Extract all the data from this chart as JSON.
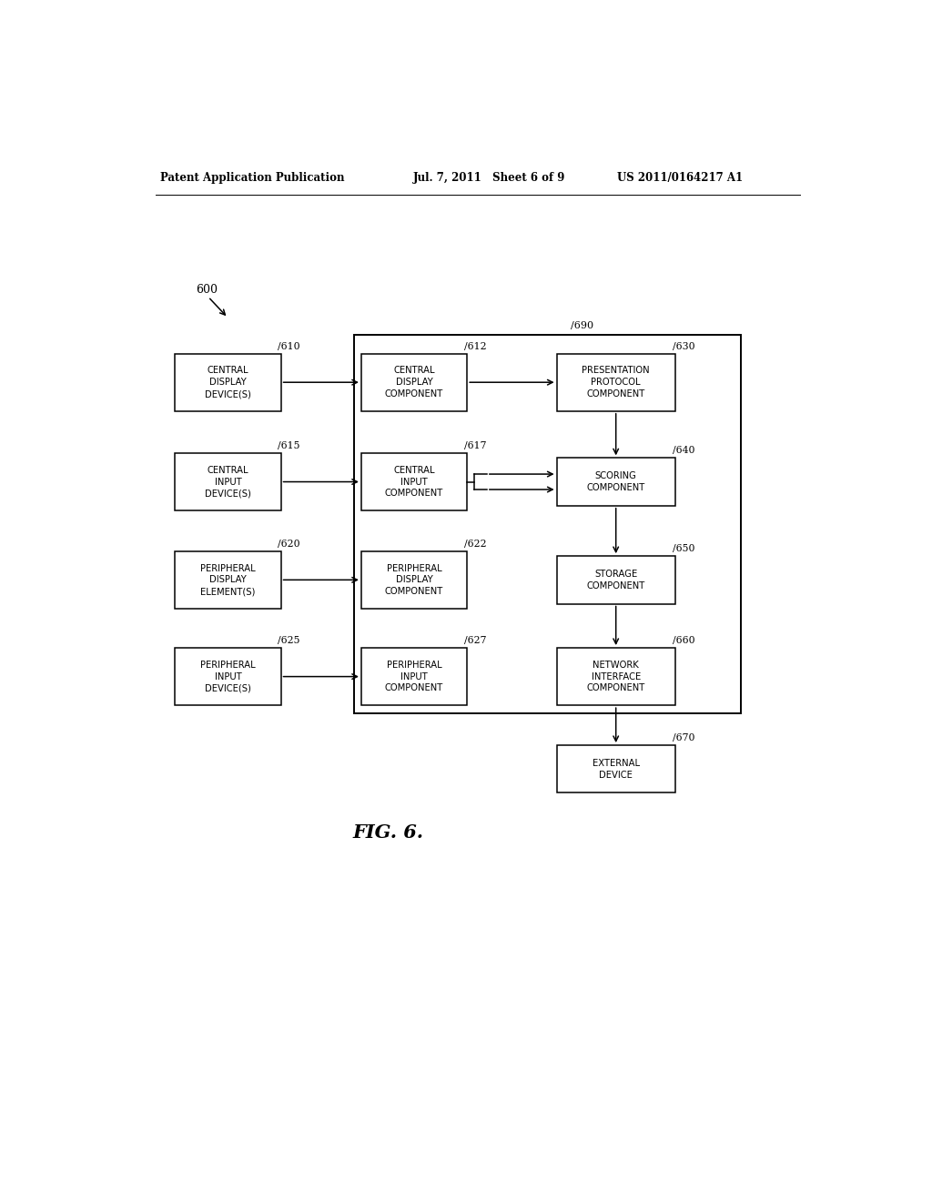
{
  "background_color": "#ffffff",
  "header_left": "Patent Application Publication",
  "header_mid": "Jul. 7, 2011   Sheet 6 of 9",
  "header_right": "US 2011/0164217 A1",
  "fig_label": "FIG. 6.",
  "ref_600": "600",
  "boxes": {
    "610": "CENTRAL\nDISPLAY\nDEVICE(S)",
    "615": "CENTRAL\nINPUT\nDEVICE(S)",
    "620": "PERIPHERAL\nDISPLAY\nELEMENT(S)",
    "625": "PERIPHERAL\nINPUT\nDEVICE(S)",
    "612": "CENTRAL\nDISPLAY\nCOMPONENT",
    "617": "CENTRAL\nINPUT\nCOMPONENT",
    "622": "PERIPHERAL\nDISPLAY\nCOMPONENT",
    "627": "PERIPHERAL\nINPUT\nCOMPONENT",
    "630": "PRESENTATION\nPROTOCOL\nCOMPONENT",
    "640": "SCORING\nCOMPONENT",
    "650": "STORAGE\nCOMPONENT",
    "660": "NETWORK\nINTERFACE\nCOMPONENT",
    "670": "EXTERNAL\nDEVICE"
  },
  "page_width": 10.24,
  "page_height": 13.2
}
